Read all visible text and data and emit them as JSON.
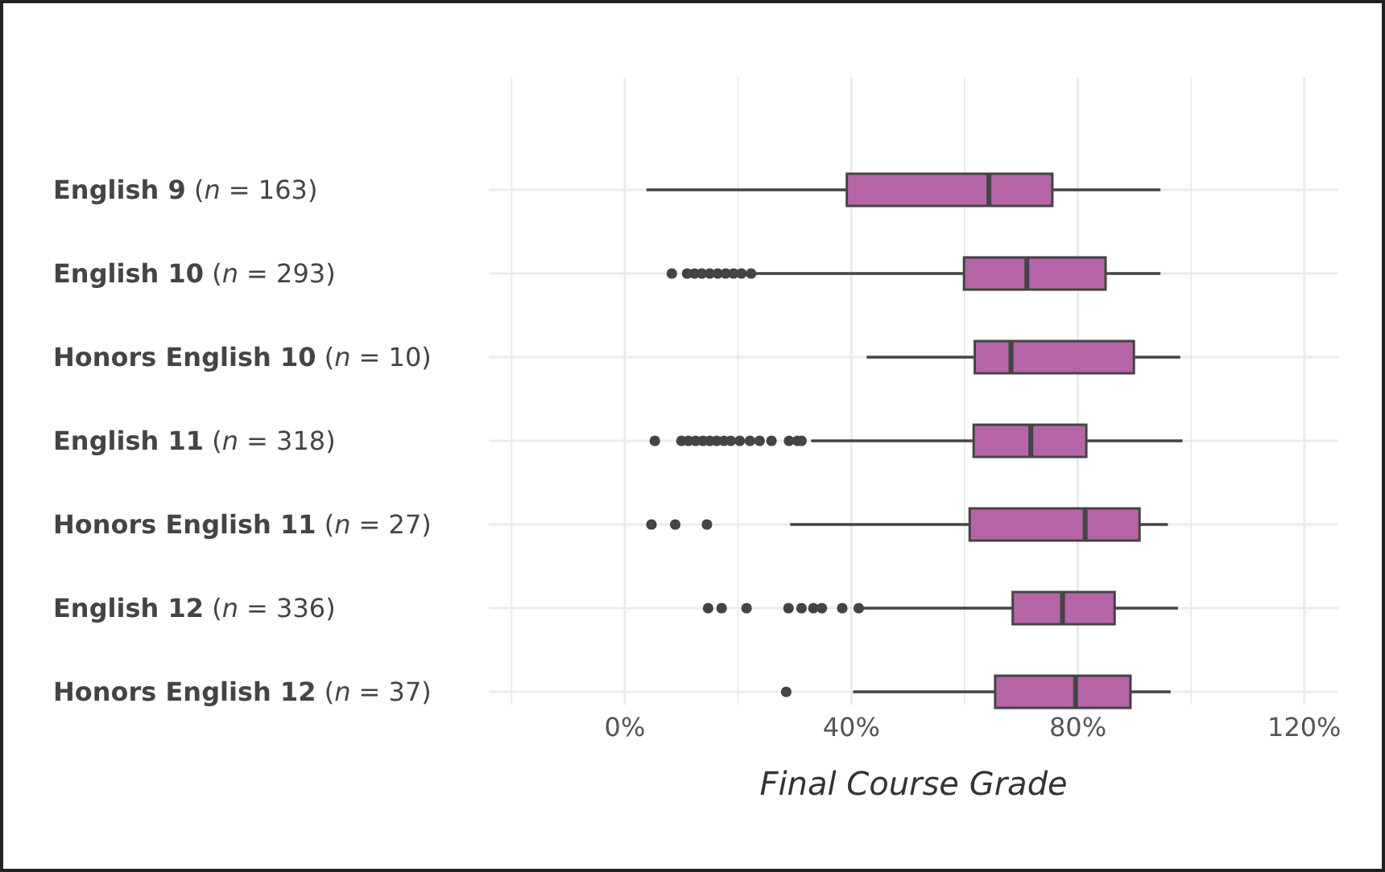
{
  "chart_data": {
    "type": "box",
    "orientation": "horizontal",
    "xlabel": "Final Course Grade",
    "grid": true,
    "categories": [
      "English 9 (n = 163)",
      "English 10 (n = 293)",
      "Honors English 10 (n = 10)",
      "English 11 (n = 318)",
      "Honors English 11 (n = 27)",
      "English 12 (n = 336)",
      "Honors English 12 (n = 37)"
    ],
    "xlim": [
      -24,
      126
    ],
    "xticks": [
      {
        "value": -20,
        "label": null
      },
      {
        "value": 0,
        "label": "0%"
      },
      {
        "value": 20,
        "label": null
      },
      {
        "value": 40,
        "label": "40%"
      },
      {
        "value": 60,
        "label": null
      },
      {
        "value": 80,
        "label": "80%"
      },
      {
        "value": 100,
        "label": null
      },
      {
        "value": 120,
        "label": "120%"
      }
    ],
    "series": [
      {
        "type": "box",
        "color": "#b565a7",
        "boxes": [
          {
            "low": 3.8,
            "q1": 39.2,
            "median": 64.3,
            "q3": 75.5,
            "high": 94.6
          },
          {
            "low": 22.8,
            "q1": 59.9,
            "median": 71,
            "q3": 84.9,
            "high": 94.6,
            "outliers": [
              8.3,
              11,
              12.3,
              13.6,
              15,
              16.4,
              17.8,
              19.2,
              20.6,
              22.3
            ]
          },
          {
            "low": 42.7,
            "q1": 61.8,
            "median": 68.2,
            "q3": 89.9,
            "high": 98.1
          },
          {
            "low": 32.9,
            "q1": 61.6,
            "median": 71.7,
            "q3": 81.5,
            "high": 98.5,
            "outliers": [
              5.3,
              10,
              11.2,
              12.5,
              13.8,
              15,
              16.2,
              17.5,
              18.7,
              20.3,
              22.1,
              23.8,
              25.9,
              29,
              30.5,
              31.2
            ]
          },
          {
            "low": 29.2,
            "q1": 60.9,
            "median": 81.3,
            "q3": 90.9,
            "high": 95.9,
            "outliers": [
              4.7,
              8.9,
              14.5
            ]
          },
          {
            "low": 42,
            "q1": 68.5,
            "median": 77.3,
            "q3": 86.5,
            "high": 97.7,
            "outliers": [
              14.7,
              17.1,
              21.5,
              28.9,
              31.2,
              33.3,
              34.8,
              38.4,
              41.3
            ]
          },
          {
            "low": 40.3,
            "q1": 65.4,
            "median": 79.6,
            "q3": 89.3,
            "high": 96.4,
            "outliers": [
              28.5
            ]
          }
        ]
      }
    ]
  }
}
